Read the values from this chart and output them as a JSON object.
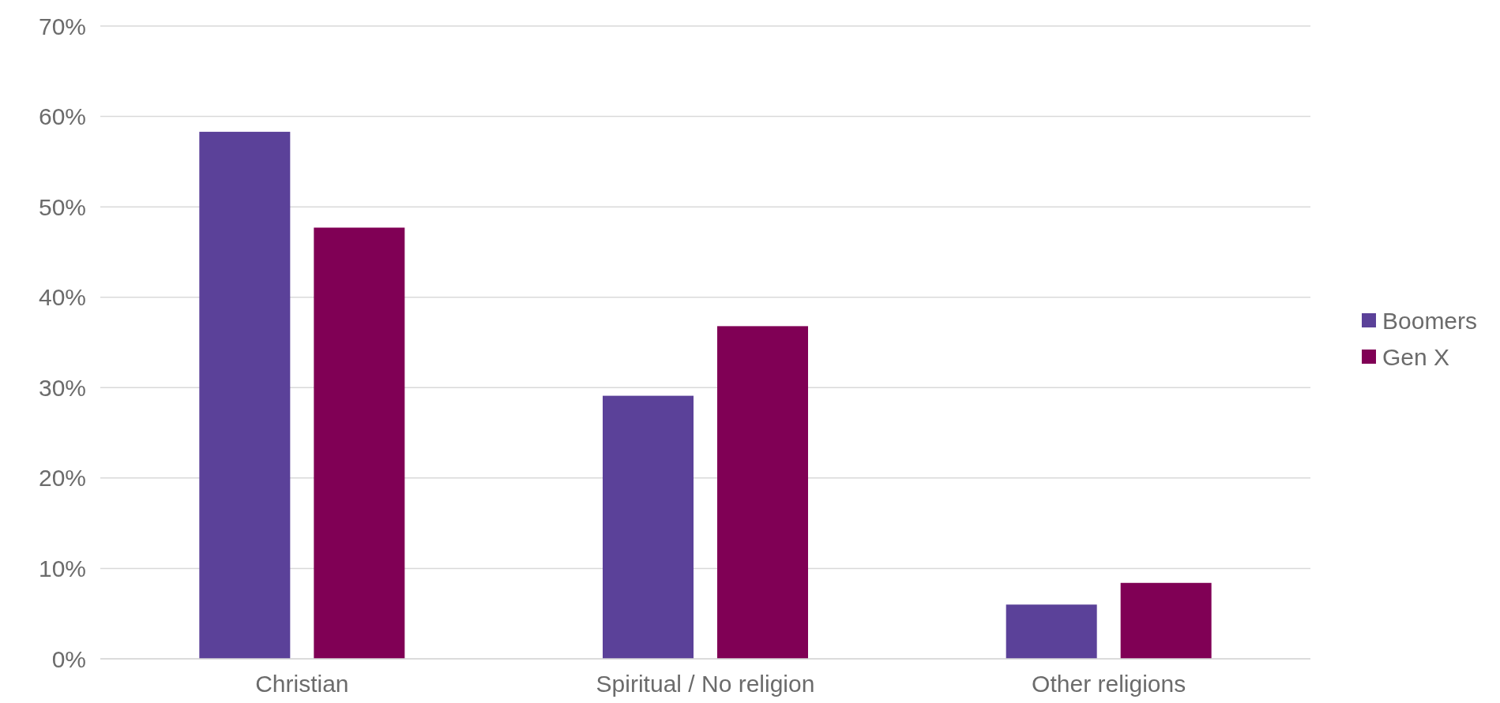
{
  "chart_data": {
    "type": "bar",
    "categories": [
      "Christian",
      "Spiritual / No religion",
      "Other religions"
    ],
    "series": [
      {
        "name": "Boomers",
        "color": "#5b4199",
        "values": [
          58.3,
          29.1,
          6.0
        ]
      },
      {
        "name": "Gen X",
        "color": "#800055",
        "values": [
          47.7,
          36.8,
          8.4
        ]
      }
    ],
    "ylim": [
      0,
      70
    ],
    "yticks": [
      {
        "value": 0,
        "label": "0%"
      },
      {
        "value": 10,
        "label": "10%"
      },
      {
        "value": 20,
        "label": "20%"
      },
      {
        "value": 30,
        "label": "30%"
      },
      {
        "value": 40,
        "label": "40%"
      },
      {
        "value": 50,
        "label": "50%"
      },
      {
        "value": 60,
        "label": "60%"
      },
      {
        "value": 70,
        "label": "70%"
      }
    ],
    "grid": "y",
    "legend": "right"
  }
}
